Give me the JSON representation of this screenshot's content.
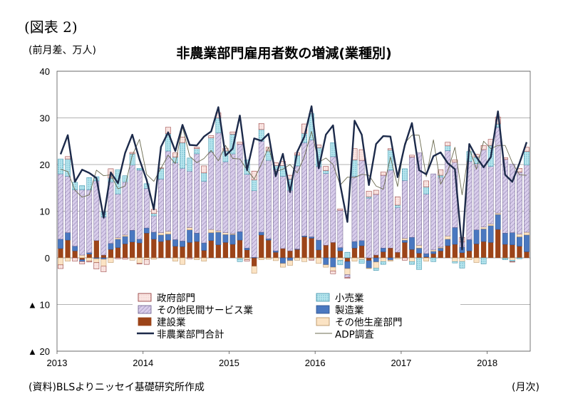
{
  "figure_label": "(図表 2)",
  "unit_label": "(前月差、万人)",
  "title": "非農業部門雇用者数の増減(業種別)",
  "source": "(資料)BLSよりニッセイ基礎研究所作成",
  "x_unit": "(月次)",
  "colors": {
    "government": "#fbe7e4",
    "government_border": "#8b2a2a",
    "retail": "#b8e6ee",
    "retail_border": "#3a8fa8",
    "other_services": "#d8cdea",
    "other_services_border": "#6a5d8a",
    "manufacturing": "#4a78c0",
    "construction": "#9c4419",
    "other_production": "#fbe3c4",
    "other_production_border": "#b48a5a",
    "total_line": "#1c2a4a",
    "adp_line": "#6b6b50"
  },
  "chart_data": {
    "type": "bar",
    "stacked": true,
    "title": "非農業部門雇用者数の増減(業種別)",
    "ylabel": "(前月差、万人)",
    "xlabel": "(月次)",
    "ylim": [
      -20,
      40
    ],
    "y_ticks": [
      {
        "value": 40,
        "label": "40"
      },
      {
        "value": 30,
        "label": "30"
      },
      {
        "value": 20,
        "label": "20"
      },
      {
        "value": 10,
        "label": "10"
      },
      {
        "value": 0,
        "label": "0"
      },
      {
        "value": -10,
        "label": "▲ 10"
      },
      {
        "value": -20,
        "label": "▲ 20"
      }
    ],
    "x_ticks": [
      {
        "index": 0,
        "label": "2013"
      },
      {
        "index": 12,
        "label": "2014"
      },
      {
        "index": 24,
        "label": "2015"
      },
      {
        "index": 36,
        "label": "2016"
      },
      {
        "index": 48,
        "label": "2017"
      },
      {
        "index": 60,
        "label": "2018"
      }
    ],
    "grid": "horizontal",
    "legend_position": "bottom-center",
    "legend": [
      {
        "key": "government",
        "label": "政府部門",
        "kind": "bar"
      },
      {
        "key": "retail",
        "label": "小売業",
        "kind": "bar"
      },
      {
        "key": "other_services",
        "label": "その他民間サービス業",
        "kind": "bar"
      },
      {
        "key": "manufacturing",
        "label": "製造業",
        "kind": "bar"
      },
      {
        "key": "construction",
        "label": "建設業",
        "kind": "bar"
      },
      {
        "key": "other_production",
        "label": "その他生産部門",
        "kind": "bar"
      },
      {
        "key": "total",
        "label": "非農業部門合計",
        "kind": "line"
      },
      {
        "key": "adp",
        "label": "ADP調査",
        "kind": "line"
      }
    ],
    "months": [
      "2013-01",
      "2013-02",
      "2013-03",
      "2013-04",
      "2013-05",
      "2013-06",
      "2013-07",
      "2013-08",
      "2013-09",
      "2013-10",
      "2013-11",
      "2013-12",
      "2014-01",
      "2014-02",
      "2014-03",
      "2014-04",
      "2014-05",
      "2014-06",
      "2014-07",
      "2014-08",
      "2014-09",
      "2014-10",
      "2014-11",
      "2014-12",
      "2015-01",
      "2015-02",
      "2015-03",
      "2015-04",
      "2015-05",
      "2015-06",
      "2015-07",
      "2015-08",
      "2015-09",
      "2015-10",
      "2015-11",
      "2015-12",
      "2016-01",
      "2016-02",
      "2016-03",
      "2016-04",
      "2016-05",
      "2016-06",
      "2016-07",
      "2016-08",
      "2016-09",
      "2016-10",
      "2016-11",
      "2016-12",
      "2017-01",
      "2017-02",
      "2017-03",
      "2017-04",
      "2017-05",
      "2017-06",
      "2017-07",
      "2017-08",
      "2017-09",
      "2017-10",
      "2017-11",
      "2017-12",
      "2018-01",
      "2018-02",
      "2018-03",
      "2018-04",
      "2018-05",
      "2018-06"
    ],
    "series": {
      "construction": [
        2.0,
        3.8,
        1.5,
        -0.4,
        0.8,
        3.7,
        0.6,
        1.8,
        2.2,
        3.0,
        3.4,
        3.2,
        5.3,
        4.0,
        3.5,
        3.8,
        2.5,
        2.4,
        3.3,
        3.5,
        1.6,
        3.7,
        2.8,
        3.3,
        2.9,
        3.8,
        1.7,
        -1.8,
        4.9,
        3.8,
        1.2,
        2.0,
        1.5,
        1.8,
        4.5,
        4.2,
        1.7,
        2.7,
        3.3,
        1.5,
        -0.8,
        2.1,
        2.6,
        -0.6,
        0.6,
        1.3,
        2.1,
        1.2,
        3.3,
        1.8,
        1.0,
        0.2,
        0.9,
        1.5,
        2.6,
        2.9,
        1.1,
        1.5,
        3.0,
        3.5,
        3.3,
        6.1,
        2.9,
        2.8,
        2.5,
        1.3
      ],
      "manufacturing": [
        2.0,
        1.6,
        1.0,
        -0.4,
        0.3,
        -0.2,
        -0.3,
        1.3,
        1.8,
        1.6,
        2.5,
        0.8,
        1.1,
        1.5,
        1.4,
        1.3,
        1.4,
        1.2,
        2.7,
        1.8,
        1.6,
        1.7,
        2.7,
        1.7,
        2.1,
        1.8,
        0.4,
        0.1,
        0.6,
        0.3,
        0.3,
        -1.2,
        -0.6,
        0.1,
        0.2,
        0.3,
        2.1,
        -1.5,
        -2.0,
        0.7,
        -1.5,
        1.4,
        1.1,
        -1.6,
        -0.9,
        0.8,
        -0.5,
        0.0,
        0.5,
        2.6,
        1.1,
        0.7,
        0.5,
        0.6,
        1.4,
        3.6,
        1.2,
        2.4,
        3.0,
        2.7,
        3.6,
        3.2,
        2.4,
        2.6,
        2.0,
        3.6
      ],
      "other_production": [
        -1.5,
        -0.7,
        0.0,
        0.6,
        -0.7,
        -0.8,
        -1.5,
        -1.0,
        0.3,
        0.3,
        -0.5,
        -1.2,
        -0.4,
        -0.3,
        0.5,
        0.6,
        -0.7,
        -1.4,
        0.5,
        -0.4,
        -0.7,
        0.7,
        0.3,
        0.4,
        0.2,
        -0.2,
        -0.4,
        -1.5,
        -0.4,
        -0.3,
        -0.6,
        -0.8,
        -1.0,
        -0.5,
        -0.8,
        -0.3,
        -1.2,
        -0.5,
        -0.8,
        -0.5,
        -1.3,
        -0.7,
        -0.4,
        -0.1,
        -1.3,
        -0.8,
        -0.2,
        -0.2,
        0.4,
        -0.8,
        0.6,
        -0.7,
        0.3,
        0.2,
        0.7,
        -0.8,
        -0.8,
        -0.4,
        -1.0,
        0.4,
        0.4,
        0.3,
        -0.1,
        -0.5,
        0.6,
        0.6
      ],
      "other_services": [
        14.0,
        12.1,
        12.1,
        14.0,
        13.5,
        12.8,
        8.2,
        13.2,
        9.4,
        11.4,
        14.0,
        14.8,
        8.5,
        3.5,
        11.5,
        17.2,
        16.5,
        15.6,
        12.1,
        17.0,
        13.2,
        16.6,
        21.0,
        15.2,
        17.1,
        18.8,
        15.8,
        14.3,
        19.5,
        16.8,
        17.5,
        15.5,
        13.0,
        17.8,
        20.0,
        20.8,
        15.8,
        15.4,
        18.4,
        8.0,
        -0.6,
        14.0,
        17.2,
        12.8,
        13.0,
        15.6,
        16.7,
        9.6,
        12.4,
        17.2,
        19.8,
        12.8,
        16.3,
        15.0,
        18.3,
        14.0,
        1.1,
        16.8,
        14.2,
        16.6,
        12.3,
        18.4,
        15.8,
        14.7,
        13.3,
        14.4
      ],
      "retail": [
        3.2,
        3.7,
        1.6,
        0.9,
        2.6,
        0.9,
        1.0,
        0.8,
        5.2,
        1.3,
        2.4,
        0.4,
        1.0,
        0.5,
        2.3,
        3.7,
        1.2,
        5.5,
        2.8,
        1.1,
        1.8,
        3.0,
        3.2,
        2.3,
        4.2,
        -0.6,
        3.1,
        2.3,
        2.5,
        2.0,
        0.8,
        2.3,
        2.4,
        2.3,
        2.0,
        5.6,
        4.0,
        0.6,
        3.0,
        -1.0,
        1.2,
        3.5,
        -0.8,
        0.3,
        -0.5,
        -0.6,
        4.3,
        0.5,
        2.5,
        -0.6,
        -2.5,
        1.5,
        -0.8,
        0.4,
        1.0,
        -0.3,
        -1.4,
        2.1,
        1.4,
        -1.3,
        4.5,
        0.7,
        -0.3,
        -0.3,
        -0.2,
        2.9
      ],
      "government": [
        -0.8,
        0.5,
        -0.7,
        -0.5,
        -0.2,
        -1.4,
        -1.2,
        2.0,
        -0.2,
        -0.3,
        0.3,
        -0.1,
        -1.0,
        0.9,
        0.1,
        1.4,
        0.9,
        1.2,
        -0.2,
        0.3,
        1.5,
        0.5,
        1.1,
        0.6,
        0.5,
        0.4,
        -0.3,
        1.9,
        1.3,
        0.8,
        0.6,
        0.9,
        0.8,
        0.5,
        2.0,
        -0.2,
        0.6,
        0.9,
        -0.6,
        0.3,
        -0.2,
        2.4,
        2.3,
        1.2,
        0.9,
        0.7,
        0.3,
        1.8,
        -0.5,
        0.4,
        0.0,
        1.3,
        0.0,
        1.2,
        0.8,
        0.5,
        1.0,
        0.0,
        0.6,
        0.9,
        1.3,
        1.5,
        0.4,
        -0.1,
        0.8,
        0.9
      ],
      "total": [
        22.2,
        26.3,
        16.3,
        18.9,
        18.2,
        17.1,
        8.6,
        18.3,
        16.0,
        22.5,
        26.4,
        21.1,
        16.7,
        10.4,
        23.8,
        26.9,
        22.9,
        28.5,
        24.2,
        24.1,
        26.0,
        27.1,
        32.3,
        21.9,
        23.4,
        30.5,
        18.8,
        25.6,
        25.1,
        26.6,
        17.5,
        22.3,
        14.1,
        22.7,
        26.0,
        32.5,
        19.2,
        26.4,
        28.4,
        15.7,
        7.7,
        29.4,
        26.4,
        15.6,
        24.4,
        26.1,
        26.0,
        17.3,
        24.1,
        28.9,
        18.8,
        17.9,
        21.8,
        22.6,
        20.3,
        19.0,
        1.8,
        24.4,
        21.6,
        19.4,
        21.6,
        31.4,
        17.8,
        16.3,
        20.3,
        24.8
      ],
      "adp": [
        19.0,
        18.5,
        14.5,
        13.0,
        13.5,
        18.8,
        17.6,
        17.8,
        14.8,
        15.4,
        22.0,
        25.4,
        17.9,
        16.4,
        19.2,
        22.0,
        20.2,
        28.1,
        21.8,
        20.4,
        21.3,
        23.0,
        20.8,
        24.1,
        21.3,
        21.2,
        18.9,
        16.9,
        20.1,
        23.7,
        18.5,
        19.0,
        20.0,
        18.2,
        21.7,
        27.1,
        20.5,
        21.4,
        20.0,
        15.6,
        17.3,
        17.2,
        17.9,
        17.7,
        15.4,
        14.7,
        21.6,
        15.3,
        24.6,
        26.3,
        26.3,
        17.4,
        25.3,
        15.8,
        18.6,
        23.7,
        13.5,
        23.5,
        19.0,
        25.0,
        23.4,
        24.1,
        24.1,
        20.4,
        17.8,
        17.7
      ]
    }
  }
}
